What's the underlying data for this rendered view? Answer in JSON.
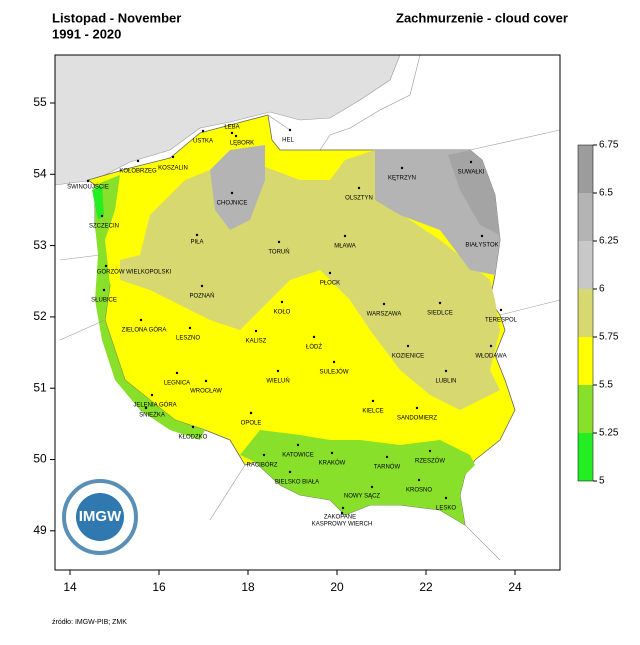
{
  "header": {
    "title": "Listopad - November",
    "period": "1991 - 2020",
    "variable": "Zachmurzenie - cloud cover"
  },
  "map": {
    "lon_ticks": [
      14,
      16,
      18,
      20,
      22,
      24
    ],
    "lat_ticks": [
      49,
      50,
      51,
      52,
      53,
      54,
      55
    ],
    "legend": {
      "ticks": [
        5,
        5.25,
        5.5,
        5.75,
        6,
        6.25,
        6.5,
        6.75
      ],
      "colors": [
        "#22ee22",
        "#88e02a",
        "#ffff00",
        "#d8d870",
        "#c8c8c8",
        "#b4b4b4",
        "#9c9c9c"
      ]
    },
    "cities": [
      "HEL",
      "ŁEBA",
      "USTKA",
      "LĘBORK",
      "KOŁOBRZEG",
      "KOSZALIN",
      "ŚWINOUJŚCIE",
      "SZCZECIN",
      "CHOJNICE",
      "PIŁA",
      "TORUŃ",
      "OLSZTYN",
      "KĘTRZYN",
      "SUWAŁKI",
      "MŁAWA",
      "BIAŁYSTOK",
      "GORZÓW WIELKOPOLSKI",
      "PŁOCK",
      "SŁUBICE",
      "POZNAŃ",
      "WARSZAWA",
      "SIEDLCE",
      "TERESPOL",
      "KOŁO",
      "ZIELONA GÓRA",
      "LESZNO",
      "KALISZ",
      "ŁÓDŹ",
      "WŁODAWA",
      "KOZIENICE",
      "SULEJÓW",
      "LEGNICA",
      "WROCŁAW",
      "WIELUŃ",
      "LUBLIN",
      "JELENIA GÓRA",
      "ŚNIEŻKA",
      "KIELCE",
      "SANDOMIERZ",
      "OPOLE",
      "KŁODZKO",
      "KATOWICE",
      "RZESZÓW",
      "RACIBÓRZ",
      "KRAKÓW",
      "TARNÓW",
      "BIELSKO BIAŁA",
      "NOWY SĄCZ",
      "KROSNO",
      "LESKO",
      "ZAKOPANE",
      "KASPROWY WIERCH"
    ],
    "logo": "IMGW"
  },
  "footer": {
    "source": "źródło: IMGW-PIB; ZMK"
  }
}
